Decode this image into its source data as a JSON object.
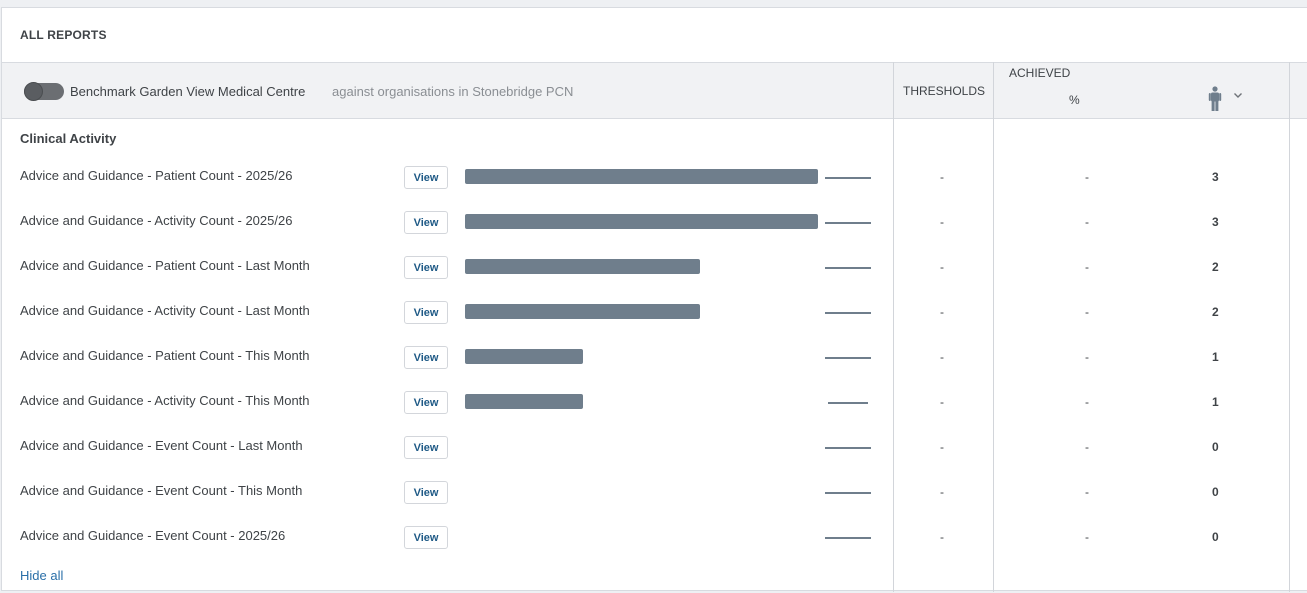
{
  "panel": {
    "title": "ALL REPORTS"
  },
  "header": {
    "benchmark_label": "Benchmark Garden View Medical Centre",
    "against_label": "against organisations in Stonebridge PCN",
    "thresholds_label": "THRESHOLDS",
    "achieved_label": "ACHIEVED",
    "percent_label": "%"
  },
  "section": {
    "title": "Clinical Activity",
    "hide_all_label": "Hide all"
  },
  "view_label": "View",
  "rows": [
    {
      "label": "Advice and Guidance - Patient Count - 2025/26",
      "threshold": "-",
      "achieved_pct": "-",
      "count": "3",
      "bar_fraction": 1.0
    },
    {
      "label": "Advice and Guidance - Activity Count - 2025/26",
      "threshold": "-",
      "achieved_pct": "-",
      "count": "3",
      "bar_fraction": 1.0
    },
    {
      "label": "Advice and Guidance - Patient Count - Last Month",
      "threshold": "-",
      "achieved_pct": "-",
      "count": "2",
      "bar_fraction": 0.667
    },
    {
      "label": "Advice and Guidance - Activity Count - Last Month",
      "threshold": "-",
      "achieved_pct": "-",
      "count": "2",
      "bar_fraction": 0.667
    },
    {
      "label": "Advice and Guidance - Patient Count - This Month",
      "threshold": "-",
      "achieved_pct": "-",
      "count": "1",
      "bar_fraction": 0.333
    },
    {
      "label": "Advice and Guidance - Activity Count - This Month",
      "threshold": "-",
      "achieved_pct": "-",
      "count": "1",
      "bar_fraction": 0.333
    },
    {
      "label": "Advice and Guidance - Event Count - Last Month",
      "threshold": "-",
      "achieved_pct": "-",
      "count": "0",
      "bar_fraction": 0
    },
    {
      "label": "Advice and Guidance - Event Count - This Month",
      "threshold": "-",
      "achieved_pct": "-",
      "count": "0",
      "bar_fraction": 0
    },
    {
      "label": "Advice and Guidance - Event Count - 2025/26",
      "threshold": "-",
      "achieved_pct": "-",
      "count": "0",
      "bar_fraction": 0
    }
  ],
  "colors": {
    "bar": "#6f7e8c",
    "link": "#2a6fa8",
    "button_text": "#1f5a86"
  },
  "icons": {
    "toggle": "benchmark-toggle",
    "person": "person-icon",
    "chevron": "chevron-down-icon"
  }
}
